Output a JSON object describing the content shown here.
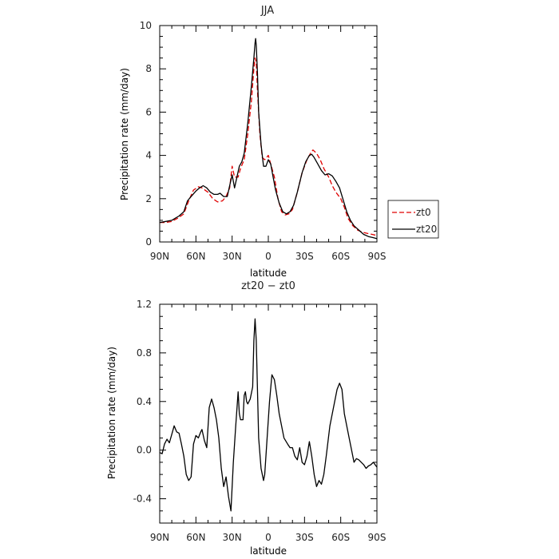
{
  "chart_data": [
    {
      "type": "line",
      "title": "JJA",
      "xlabel": "latitude",
      "ylabel": "Precipitation rate (mm/day)",
      "xlim": [
        90,
        -90
      ],
      "ylim": [
        0,
        10
      ],
      "x_ticks": [
        90,
        60,
        30,
        0,
        -30,
        -60,
        -90
      ],
      "x_tick_labels": [
        "90N",
        "60N",
        "30N",
        "0",
        "30S",
        "60S",
        "90S"
      ],
      "y_ticks": [
        0,
        2,
        4,
        6,
        8,
        10
      ],
      "y_tick_labels": [
        "0",
        "2",
        "4",
        "6",
        "8",
        "10"
      ],
      "grid": false,
      "legend": "right",
      "series": [
        {
          "name": "zt0",
          "color": "#e00000",
          "dash": "dashed",
          "points": [
            [
              90,
              0.9
            ],
            [
              85,
              0.9
            ],
            [
              80,
              0.95
            ],
            [
              75,
              1.1
            ],
            [
              70,
              1.3
            ],
            [
              66,
              1.9
            ],
            [
              62,
              2.4
            ],
            [
              58,
              2.55
            ],
            [
              55,
              2.5
            ],
            [
              50,
              2.3
            ],
            [
              46,
              2.0
            ],
            [
              42,
              1.85
            ],
            [
              38,
              1.9
            ],
            [
              35,
              2.1
            ],
            [
              32,
              2.5
            ],
            [
              30,
              3.5
            ],
            [
              28,
              3.0
            ],
            [
              25,
              3.0
            ],
            [
              23,
              3.4
            ],
            [
              20,
              3.8
            ],
            [
              17,
              5.0
            ],
            [
              14,
              6.5
            ],
            [
              12,
              8.0
            ],
            [
              11,
              8.5
            ],
            [
              10,
              8.3
            ],
            [
              9,
              7.0
            ],
            [
              7,
              5.0
            ],
            [
              5,
              3.9
            ],
            [
              3,
              3.8
            ],
            [
              0,
              4.0
            ],
            [
              -2,
              3.6
            ],
            [
              -5,
              3.0
            ],
            [
              -8,
              2.0
            ],
            [
              -11,
              1.4
            ],
            [
              -14,
              1.25
            ],
            [
              -17,
              1.3
            ],
            [
              -20,
              1.5
            ],
            [
              -24,
              2.3
            ],
            [
              -28,
              3.2
            ],
            [
              -32,
              3.8
            ],
            [
              -35,
              4.1
            ],
            [
              -37,
              4.25
            ],
            [
              -40,
              4.1
            ],
            [
              -43,
              3.8
            ],
            [
              -46,
              3.4
            ],
            [
              -50,
              3.0
            ],
            [
              -53,
              2.6
            ],
            [
              -56,
              2.3
            ],
            [
              -60,
              2.0
            ],
            [
              -63,
              1.6
            ],
            [
              -66,
              1.1
            ],
            [
              -70,
              0.75
            ],
            [
              -74,
              0.55
            ],
            [
              -78,
              0.45
            ],
            [
              -82,
              0.4
            ],
            [
              -86,
              0.35
            ],
            [
              -90,
              0.3
            ]
          ]
        },
        {
          "name": "zt20",
          "color": "#000000",
          "dash": "solid",
          "points": [
            [
              90,
              0.9
            ],
            [
              85,
              0.95
            ],
            [
              80,
              1.0
            ],
            [
              77,
              1.1
            ],
            [
              74,
              1.2
            ],
            [
              70,
              1.4
            ],
            [
              67,
              1.9
            ],
            [
              64,
              2.1
            ],
            [
              60,
              2.35
            ],
            [
              57,
              2.5
            ],
            [
              54,
              2.6
            ],
            [
              51,
              2.5
            ],
            [
              48,
              2.3
            ],
            [
              45,
              2.2
            ],
            [
              42,
              2.2
            ],
            [
              40,
              2.25
            ],
            [
              37,
              2.1
            ],
            [
              34,
              2.1
            ],
            [
              32,
              2.6
            ],
            [
              30,
              3.1
            ],
            [
              28,
              2.5
            ],
            [
              26,
              3.0
            ],
            [
              24,
              3.5
            ],
            [
              22,
              3.7
            ],
            [
              20,
              4.1
            ],
            [
              17,
              5.5
            ],
            [
              14,
              7.2
            ],
            [
              12,
              8.5
            ],
            [
              11,
              9.2
            ],
            [
              10.5,
              9.4
            ],
            [
              10,
              9.1
            ],
            [
              9,
              7.8
            ],
            [
              8,
              6.0
            ],
            [
              6,
              4.5
            ],
            [
              4,
              3.5
            ],
            [
              2,
              3.5
            ],
            [
              0,
              3.8
            ],
            [
              -2,
              3.6
            ],
            [
              -4,
              3.0
            ],
            [
              -6,
              2.4
            ],
            [
              -9,
              1.8
            ],
            [
              -12,
              1.4
            ],
            [
              -15,
              1.3
            ],
            [
              -18,
              1.4
            ],
            [
              -21,
              1.7
            ],
            [
              -24,
              2.3
            ],
            [
              -28,
              3.2
            ],
            [
              -31,
              3.7
            ],
            [
              -34,
              4.0
            ],
            [
              -36,
              4.05
            ],
            [
              -38,
              3.9
            ],
            [
              -41,
              3.6
            ],
            [
              -44,
              3.3
            ],
            [
              -47,
              3.1
            ],
            [
              -50,
              3.15
            ],
            [
              -53,
              3.05
            ],
            [
              -56,
              2.8
            ],
            [
              -59,
              2.5
            ],
            [
              -62,
              1.95
            ],
            [
              -65,
              1.4
            ],
            [
              -68,
              1.0
            ],
            [
              -71,
              0.75
            ],
            [
              -75,
              0.55
            ],
            [
              -79,
              0.35
            ],
            [
              -83,
              0.25
            ],
            [
              -87,
              0.2
            ],
            [
              -90,
              0.15
            ]
          ]
        }
      ]
    },
    {
      "type": "line",
      "title": "zt20 − zt0",
      "xlabel": "latitude",
      "ylabel": "Precipitation rate (mm/day)",
      "xlim": [
        90,
        -90
      ],
      "ylim": [
        -0.6,
        1.2
      ],
      "x_ticks": [
        90,
        60,
        30,
        0,
        -30,
        -60,
        -90
      ],
      "x_tick_labels": [
        "90N",
        "60N",
        "30N",
        "0",
        "30S",
        "60S",
        "90S"
      ],
      "y_ticks": [
        -0.4,
        0.0,
        0.4,
        0.8,
        1.2
      ],
      "y_tick_labels": [
        "-0.4",
        "0.0",
        "0.4",
        "0.8",
        "1.2"
      ],
      "grid": false,
      "series": [
        {
          "color": "#000000",
          "dash": "solid",
          "points": [
            [
              90,
              -0.02
            ],
            [
              88,
              -0.03
            ],
            [
              86,
              0.05
            ],
            [
              84,
              0.09
            ],
            [
              82,
              0.06
            ],
            [
              80,
              0.13
            ],
            [
              78,
              0.2
            ],
            [
              76,
              0.15
            ],
            [
              74,
              0.14
            ],
            [
              72,
              0.05
            ],
            [
              70,
              -0.05
            ],
            [
              68,
              -0.2
            ],
            [
              66,
              -0.25
            ],
            [
              64,
              -0.22
            ],
            [
              62,
              0.05
            ],
            [
              60,
              0.12
            ],
            [
              58,
              0.1
            ],
            [
              56,
              0.15
            ],
            [
              55,
              0.17
            ],
            [
              53,
              0.08
            ],
            [
              51,
              0.02
            ],
            [
              49,
              0.35
            ],
            [
              47,
              0.42
            ],
            [
              45,
              0.35
            ],
            [
              43,
              0.25
            ],
            [
              41,
              0.1
            ],
            [
              39,
              -0.15
            ],
            [
              37,
              -0.3
            ],
            [
              35,
              -0.22
            ],
            [
              33,
              -0.38
            ],
            [
              31,
              -0.5
            ],
            [
              29,
              -0.1
            ],
            [
              27,
              0.2
            ],
            [
              25,
              0.48
            ],
            [
              24,
              0.3
            ],
            [
              23,
              0.25
            ],
            [
              21,
              0.25
            ],
            [
              20,
              0.45
            ],
            [
              19,
              0.48
            ],
            [
              18,
              0.4
            ],
            [
              17,
              0.38
            ],
            [
              15,
              0.42
            ],
            [
              13,
              0.52
            ],
            [
              12,
              0.9
            ],
            [
              11,
              1.08
            ],
            [
              10,
              0.9
            ],
            [
              9,
              0.5
            ],
            [
              8,
              0.1
            ],
            [
              6,
              -0.15
            ],
            [
              4,
              -0.25
            ],
            [
              3,
              -0.2
            ],
            [
              1,
              0.1
            ],
            [
              -1,
              0.4
            ],
            [
              -3,
              0.62
            ],
            [
              -5,
              0.58
            ],
            [
              -7,
              0.45
            ],
            [
              -9,
              0.3
            ],
            [
              -11,
              0.2
            ],
            [
              -13,
              0.1
            ],
            [
              -16,
              0.05
            ],
            [
              -18,
              0.02
            ],
            [
              -20,
              0.02
            ],
            [
              -22,
              -0.05
            ],
            [
              -24,
              -0.08
            ],
            [
              -26,
              0.02
            ],
            [
              -28,
              -0.1
            ],
            [
              -30,
              -0.12
            ],
            [
              -32,
              -0.05
            ],
            [
              -34,
              0.07
            ],
            [
              -36,
              -0.05
            ],
            [
              -38,
              -0.2
            ],
            [
              -40,
              -0.3
            ],
            [
              -42,
              -0.25
            ],
            [
              -44,
              -0.28
            ],
            [
              -46,
              -0.2
            ],
            [
              -48,
              -0.05
            ],
            [
              -51,
              0.2
            ],
            [
              -54,
              0.35
            ],
            [
              -57,
              0.5
            ],
            [
              -59,
              0.55
            ],
            [
              -61,
              0.5
            ],
            [
              -63,
              0.3
            ],
            [
              -65,
              0.2
            ],
            [
              -67,
              0.1
            ],
            [
              -69,
              0.0
            ],
            [
              -71,
              -0.1
            ],
            [
              -73,
              -0.07
            ],
            [
              -75,
              -0.08
            ],
            [
              -77,
              -0.1
            ],
            [
              -79,
              -0.12
            ],
            [
              -81,
              -0.15
            ],
            [
              -83,
              -0.13
            ],
            [
              -85,
              -0.12
            ],
            [
              -87,
              -0.1
            ],
            [
              -90,
              -0.14
            ]
          ]
        }
      ]
    }
  ]
}
